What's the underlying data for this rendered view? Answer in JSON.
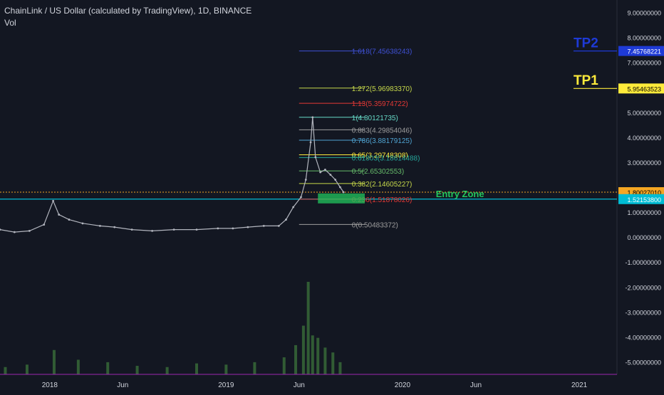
{
  "header": {
    "title": "ChainLink / US Dollar (calculated by TradingView), 1D, BINANCE",
    "volume_label": "Vol"
  },
  "colors": {
    "background": "#131722",
    "candle_up": "#b2b5be",
    "price_line": "#00bcd4",
    "dotted_line": "#f5a623",
    "entry_zone": "#22c55e",
    "tp1": "#ffeb3b",
    "tp2": "#1e3ad6",
    "bottom_line": "#9c27b0",
    "volume": "#3a6e3a"
  },
  "chart_data": {
    "type": "line",
    "title": "ChainLink / US Dollar (calculated by TradingView), 1D, BINANCE",
    "y_axis": {
      "range": [
        -5.5,
        9.5
      ],
      "ticks": [
        {
          "value": 9,
          "label": "9.00000000"
        },
        {
          "value": 8,
          "label": "8.00000000"
        },
        {
          "value": 7,
          "label": "7.00000000"
        },
        {
          "value": 5,
          "label": "5.00000000"
        },
        {
          "value": 4,
          "label": "4.00000000"
        },
        {
          "value": 3,
          "label": "3.00000000"
        },
        {
          "value": 1,
          "label": "1.00000000"
        },
        {
          "value": 0,
          "label": "0.00000000"
        },
        {
          "value": -1,
          "label": "-1.00000000"
        },
        {
          "value": -2,
          "label": "-2.00000000"
        },
        {
          "value": -3,
          "label": "-3.00000000"
        },
        {
          "value": -4,
          "label": "-4.00000000"
        },
        {
          "value": -5,
          "label": "-5.00000000"
        }
      ]
    },
    "x_axis": {
      "range": [
        "2017-09-20",
        "2021-03-20"
      ],
      "ticks": [
        {
          "date": "2018-01-01",
          "label": "2018"
        },
        {
          "date": "2018-06-01",
          "label": "Jun"
        },
        {
          "date": "2019-01-01",
          "label": "2019"
        },
        {
          "date": "2019-06-01",
          "label": "Jun"
        },
        {
          "date": "2020-01-01",
          "label": "2020"
        },
        {
          "date": "2020-06-01",
          "label": "Jun"
        },
        {
          "date": "2021-01-01",
          "label": "2021"
        }
      ]
    },
    "price_series": {
      "name": "LINKUSD",
      "x": [
        "2017-09-20",
        "2017-10-20",
        "2017-11-20",
        "2017-12-20",
        "2018-01-08",
        "2018-01-20",
        "2018-02-10",
        "2018-03-10",
        "2018-04-15",
        "2018-05-15",
        "2018-06-20",
        "2018-08-01",
        "2018-09-15",
        "2018-11-01",
        "2018-12-15",
        "2019-01-15",
        "2019-02-15",
        "2019-03-20",
        "2019-04-20",
        "2019-05-05",
        "2019-05-20",
        "2019-06-05",
        "2019-06-15",
        "2019-06-25",
        "2019-06-29",
        "2019-07-05",
        "2019-07-15",
        "2019-07-25",
        "2019-08-05",
        "2019-08-15",
        "2019-08-25",
        "2019-09-01"
      ],
      "y": [
        0.3,
        0.2,
        0.25,
        0.5,
        1.45,
        0.9,
        0.7,
        0.55,
        0.45,
        0.4,
        0.3,
        0.25,
        0.3,
        0.3,
        0.35,
        0.35,
        0.4,
        0.45,
        0.45,
        0.7,
        1.2,
        1.6,
        2.3,
        3.8,
        4.8,
        3.2,
        2.6,
        2.7,
        2.5,
        2.3,
        2.0,
        1.8
      ]
    },
    "volume_series": {
      "name": "Vol",
      "x": [
        "2017-10-01",
        "2017-11-15",
        "2018-01-10",
        "2018-03-01",
        "2018-05-01",
        "2018-07-01",
        "2018-09-01",
        "2018-11-01",
        "2019-01-01",
        "2019-03-01",
        "2019-05-01",
        "2019-05-25",
        "2019-06-10",
        "2019-06-20",
        "2019-06-29",
        "2019-07-10",
        "2019-07-25",
        "2019-08-10",
        "2019-08-25"
      ],
      "values": [
        0.3,
        0.4,
        1.0,
        0.6,
        0.5,
        0.35,
        0.3,
        0.45,
        0.4,
        0.5,
        0.7,
        1.2,
        2.0,
        3.8,
        1.6,
        1.5,
        1.1,
        0.9,
        0.5
      ]
    },
    "fib_levels": [
      {
        "value": 7.45638243,
        "label": "1.618(7.45638243)",
        "color": "#3f51d6"
      },
      {
        "value": 5.9698337,
        "label": "1.272(5.96983370)",
        "color": "#c6d84a"
      },
      {
        "value": 5.35974722,
        "label": "1.13(5.35974722)",
        "color": "#e53935"
      },
      {
        "value": 4.80121735,
        "label": "1(4.80121735)",
        "color": "#66d9c6"
      },
      {
        "value": 4.29854046,
        "label": "0.883(4.29854046)",
        "color": "#9e9e9e"
      },
      {
        "value": 3.88179125,
        "label": "0.786(3.88179125)",
        "color": "#4fa3d1"
      },
      {
        "value": 3.29748308,
        "label": "0.65(3.29748308)",
        "color": "#ffeb3b"
      },
      {
        "value": 3.18614488,
        "label": "0.61803(3.18614488)",
        "color": "#26a69a"
      },
      {
        "value": 2.65302553,
        "label": "0.5(2.65302553)",
        "color": "#66bb6a"
      },
      {
        "value": 2.14605227,
        "label": "0.382(2.14605227)",
        "color": "#c6d84a"
      },
      {
        "value": 1.51878026,
        "label": "0.236(1.51878026)",
        "color": "#e53935"
      },
      {
        "value": 0.50483372,
        "label": "0(0.50483372)",
        "color": "#9e9e9e"
      }
    ],
    "horizontal_lines": [
      {
        "value": 7.45768221,
        "label": "7.45768221",
        "color": "#1e3ad6"
      },
      {
        "value": 5.95463523,
        "label": "5.95463523",
        "color": "#ffeb3b"
      },
      {
        "value": 1.8002701,
        "label": "1.80027010",
        "color": "#f5a623"
      },
      {
        "value": 1.521538,
        "label": "1.52153800",
        "color": "#00bcd4"
      }
    ],
    "annotations": [
      {
        "text": "TP2",
        "color": "#1e3ad6",
        "x": "2020-12-20",
        "y": 7.6
      },
      {
        "text": "TP1",
        "color": "#ffeb3b",
        "x": "2020-12-20",
        "y": 6.1
      },
      {
        "text": "Entry Zone",
        "color": "#22c55e",
        "x": "2020-03-10",
        "y": 1.6
      }
    ],
    "entry_zone": {
      "x_start": "2019-07-10",
      "x_end": "2019-10-15",
      "y_low": 1.35,
      "y_high": 1.75,
      "color": "#22c55e"
    },
    "fib_x_range": [
      "2019-06-01",
      "2019-10-15"
    ]
  }
}
